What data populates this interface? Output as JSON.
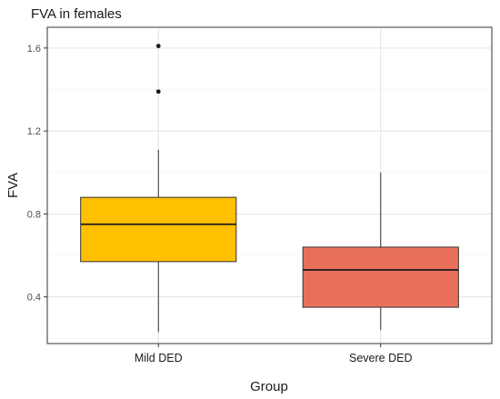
{
  "chart_data": {
    "type": "box",
    "title": "FVA in females",
    "xlabel": "Group",
    "ylabel": "FVA",
    "ylim": [
      0.175,
      1.7
    ],
    "yticks": [
      0.4,
      0.8,
      1.2,
      1.6
    ],
    "ytick_labels": [
      "0.4",
      "0.8",
      "1.2",
      "1.6"
    ],
    "grid": true,
    "legend": "none",
    "categories": [
      "Mild DED",
      "Severe DED"
    ],
    "boxes": [
      {
        "category": "Mild DED",
        "whisker_low": 0.23,
        "q1": 0.57,
        "median": 0.75,
        "q3": 0.88,
        "whisker_high": 1.11,
        "outliers": [
          1.39,
          1.61
        ],
        "color": "#FFC000"
      },
      {
        "category": "Severe DED",
        "whisker_low": 0.24,
        "q1": 0.35,
        "median": 0.53,
        "q3": 0.64,
        "whisker_high": 1.0,
        "outliers": [],
        "color": "#E8705A"
      }
    ]
  }
}
